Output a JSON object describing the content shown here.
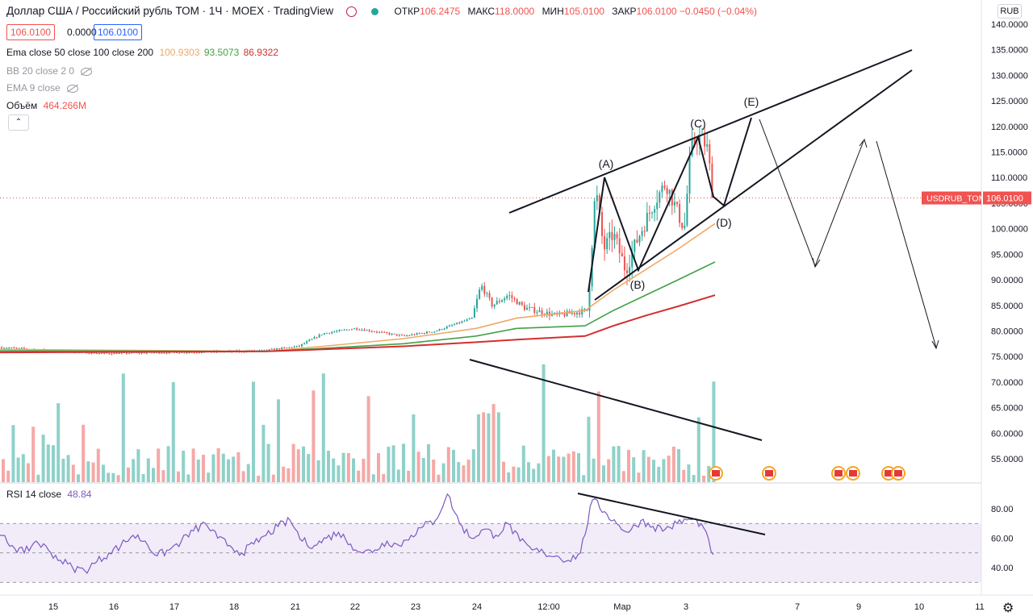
{
  "header": {
    "symbol_title": "Доллар США / Российский рубль ТОМ · 1Ч · MOEX · TradingView",
    "ohlc": [
      {
        "k": "ОТКР",
        "v": "106.2475"
      },
      {
        "k": "МАКС",
        "v": "118.0000"
      },
      {
        "k": "МИН",
        "v": "105.0100"
      },
      {
        "k": "ЗАКР",
        "v": "106.0100 −0.0450 (−0.04%)"
      }
    ],
    "bid": "106.0100",
    "spread": "0.0000",
    "ask": "106.0100",
    "currency": "RUB"
  },
  "indicators": {
    "ema_label": "Ema close 50 close 100 close 200",
    "ema_values": [
      "100.9303",
      "93.5073",
      "86.9322"
    ],
    "bb_label": "BB 20 close 2 0",
    "ema9_label": "EMA 9 close",
    "volume_label": "Объём",
    "volume_value": "464.266M",
    "rsi_label": "RSI 14 close",
    "rsi_value": "48.84",
    "collapse_glyph": "⌃"
  },
  "colors": {
    "up": "#26a69a",
    "down": "#ef5350",
    "ema50": "#f0a868",
    "ema100": "#43a047",
    "ema200": "#d32f2f",
    "rsi_line": "#7e57c2",
    "rsi_band": "#ede7f6",
    "last_price_bg": "#f05350"
  },
  "footer": {
    "settings_icon": "gear-icon",
    "settings_glyph": "⚙"
  },
  "chart_data": [
    {
      "type": "candlestick",
      "pane": "price",
      "y_ticks": [
        "140.0000",
        "135.0000",
        "130.0000",
        "125.0000",
        "120.0000",
        "115.0000",
        "110.0000",
        "105.0000",
        "100.0000",
        "95.0000",
        "90.0000",
        "85.0000",
        "80.0000",
        "75.0000",
        "70.0000",
        "65.0000",
        "60.0000",
        "55.0000"
      ],
      "ylim": [
        52,
        140
      ],
      "x_tick_labels": [
        "15",
        "16",
        "17",
        "18",
        "21",
        "22",
        "23",
        "24",
        "12:00",
        "Мар",
        "3",
        "7",
        "9",
        "10",
        "11"
      ],
      "last_price_label": "USDRUB_TOM",
      "last_price": "106.0100",
      "wave_labels": [
        "(A)",
        "(B)",
        "(C)",
        "(D)",
        "(E)"
      ],
      "wave_points": {
        "A": 110,
        "B": 91.5,
        "C": 118,
        "D": 104.5,
        "E": 122
      },
      "projection_points": [
        122,
        94,
        117.5,
        77
      ],
      "candles_approx": [
        {
          "date": "15",
          "close": 76.0
        },
        {
          "date": "16",
          "close": 75.6
        },
        {
          "date": "17",
          "close": 75.8
        },
        {
          "date": "18",
          "close": 76.0
        },
        {
          "date": "21",
          "close": 77.5
        },
        {
          "date": "22",
          "close": 80.0
        },
        {
          "date": "23",
          "close": 79.5
        },
        {
          "date": "24",
          "close": 86.5
        },
        {
          "date": "24",
          "close": 84.0
        },
        {
          "date": "25",
          "close": 82.5
        },
        {
          "date": "28",
          "close": 110
        },
        {
          "date": "28",
          "close": 92
        },
        {
          "date": "Мар",
          "close": 103
        },
        {
          "date": "2",
          "close": 110
        },
        {
          "date": "3",
          "close": 118
        },
        {
          "date": "3",
          "close": 106.01
        }
      ],
      "series": [
        {
          "name": "Ema close 50",
          "values_approx": [
            76,
            76,
            76,
            76.5,
            77,
            78,
            79,
            80.5,
            82,
            83,
            85,
            88,
            92,
            96,
            99.5,
            100.93
          ]
        },
        {
          "name": "Ema close 100",
          "values_approx": [
            76,
            76,
            76,
            76.2,
            76.8,
            77.5,
            78,
            78.8,
            79.5,
            80,
            81,
            84,
            87,
            89.5,
            92,
            93.51
          ]
        },
        {
          "name": "Ema close 200",
          "values_approx": [
            75.8,
            75.9,
            76,
            76,
            76.3,
            76.8,
            77.2,
            77.5,
            78,
            78.5,
            79,
            81,
            83,
            84.5,
            86,
            86.93
          ]
        }
      ],
      "trendlines": [
        {
          "from": [
            105,
            "Feb 24"
          ],
          "to": [
            135,
            "Mar 10"
          ],
          "desc": "upper wedge"
        },
        {
          "from": [
            86,
            "Feb 28"
          ],
          "to": [
            131,
            "Mar 10"
          ],
          "desc": "lower wedge"
        },
        {
          "from": [
            74,
            "Feb 24"
          ],
          "to": [
            59.5,
            "Mar 5"
          ],
          "desc": "volume divergence"
        }
      ]
    },
    {
      "type": "bar",
      "pane": "volume",
      "series_name": "Объём",
      "last_value": "464.266M"
    },
    {
      "type": "line",
      "pane": "rsi",
      "y_ticks": [
        "80.00",
        "60.00",
        "40.00"
      ],
      "ylim": [
        25,
        95
      ],
      "band": [
        30,
        70
      ],
      "mid": 50,
      "last_value": 48.84,
      "values_approx": [
        62,
        55,
        50,
        58,
        52,
        45,
        40,
        38,
        44,
        50,
        55,
        62,
        58,
        48,
        52,
        58,
        65,
        70,
        60,
        55,
        50,
        56,
        62,
        68,
        72,
        58,
        55,
        60,
        64,
        56,
        50,
        52,
        58,
        55,
        62,
        68,
        72,
        90,
        70,
        60,
        66,
        62,
        70,
        58,
        52,
        50,
        48,
        45,
        50,
        86,
        78,
        70,
        64,
        72,
        68,
        66,
        70,
        73,
        70,
        48.84
      ],
      "trendline": [
        [
          89,
          "Feb 28"
        ],
        [
          64,
          "Mar 5"
        ]
      ]
    }
  ]
}
